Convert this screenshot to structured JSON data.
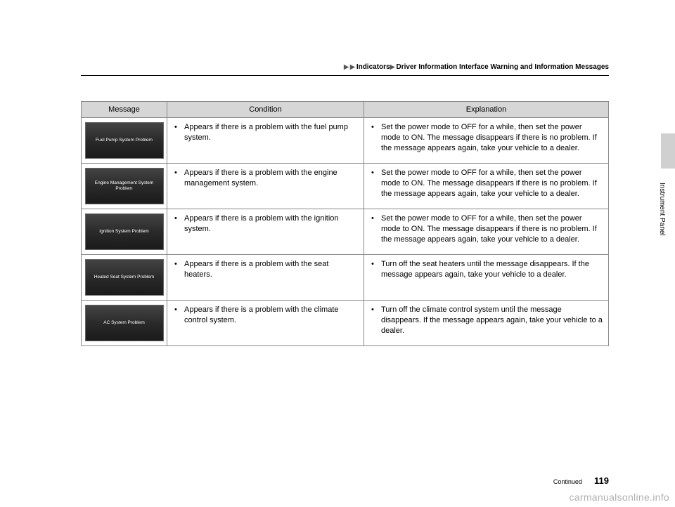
{
  "breadcrumb": {
    "level1": "Indicators",
    "level2": "Driver Information Interface Warning and Information Messages"
  },
  "side_tab_label": "Instrument Panel",
  "table": {
    "headers": {
      "col1": "Message",
      "col2": "Condition",
      "col3": "Explanation"
    },
    "rows": [
      {
        "display": "Fuel Pump System Problem",
        "condition": "Appears if there is a problem with the fuel pump system.",
        "explanation": "Set the power mode to OFF for a while, then set the power mode to ON. The message disappears if there is no problem. If the message appears again, take your vehicle to a dealer."
      },
      {
        "display": "Engine Management System Problem",
        "condition": "Appears if there is a problem with the engine management system.",
        "explanation": "Set the power mode to OFF for a while, then set the power mode to ON. The message disappears if there is no problem. If the message appears again, take your vehicle to a dealer."
      },
      {
        "display": "Ignition System Problem",
        "condition": "Appears if there is a problem with the ignition system.",
        "explanation": "Set the power mode to OFF for a while, then set the power mode to ON. The message disappears if there is no problem. If the message appears again, take your vehicle to a dealer."
      },
      {
        "display": "Heated Seat System Problem",
        "condition": "Appears if there is a problem with the seat heaters.",
        "explanation": "Turn off the seat heaters until the message disappears. If the message appears again, take your vehicle to a dealer."
      },
      {
        "display": "AC System Problem",
        "condition": "Appears if there is a problem with the climate control system.",
        "explanation": "Turn off the climate control system until the message disappears. If the message appears again, take your vehicle to a dealer."
      }
    ]
  },
  "footer": {
    "continued": "Continued",
    "page_number": "119"
  },
  "watermark": "carmanualsonline.info",
  "colors": {
    "header_bg": "#d6d6d6",
    "border": "#888888",
    "tab_bg": "#d0d0d0",
    "display_bg": "#2a2a2a"
  }
}
